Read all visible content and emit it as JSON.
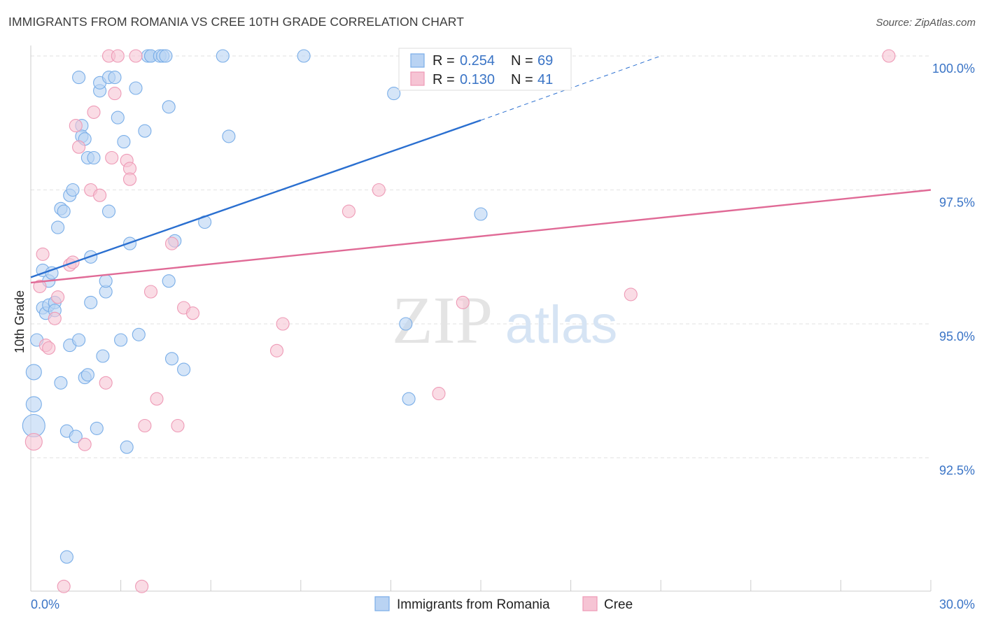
{
  "header": {
    "title": "IMMIGRANTS FROM ROMANIA VS CREE 10TH GRADE CORRELATION CHART",
    "source": "Source: ZipAtlas.com"
  },
  "watermark": {
    "zip": "ZIP",
    "atlas": "atlas"
  },
  "chart_data": {
    "type": "scatter",
    "title": "IMMIGRANTS FROM ROMANIA VS CREE 10TH GRADE CORRELATION CHART",
    "xlabel": "",
    "ylabel": "10th Grade",
    "xlim": [
      0,
      30
    ],
    "ylim": [
      89.8,
      100.2
    ],
    "x_tick_labels": [
      {
        "value": 0,
        "label": "0.0%"
      },
      {
        "value": 30,
        "label": "30.0%"
      }
    ],
    "y_tick_labels": [
      {
        "value": 100,
        "label": "100.0%"
      },
      {
        "value": 97.5,
        "label": "97.5%"
      },
      {
        "value": 95,
        "label": "95.0%"
      },
      {
        "value": 92.5,
        "label": "92.5%"
      }
    ],
    "grid": true,
    "legend": [
      {
        "series": "Immigrants from Romania",
        "r_label": "R =",
        "r": "0.254",
        "n_label": "N =",
        "n": "69"
      },
      {
        "series": "Cree",
        "r_label": "R =",
        "r": "0.130",
        "n_label": "N =",
        "n": "41"
      }
    ],
    "series": [
      {
        "name": "Immigrants from Romania",
        "color": "#7aaee8",
        "fill": "#b9d3f3",
        "trend": {
          "x0": 0.0,
          "y0": 95.87,
          "x1": 15.0,
          "y1": 98.8,
          "dash_x1": 21.0,
          "dash_y1": 100.0
        },
        "points": [
          [
            0.1,
            93.1,
            16
          ],
          [
            0.1,
            93.5,
            11
          ],
          [
            0.1,
            94.1,
            11
          ],
          [
            0.2,
            94.7,
            9
          ],
          [
            0.4,
            96.0,
            9
          ],
          [
            0.4,
            95.3,
            9
          ],
          [
            0.5,
            95.2,
            9
          ],
          [
            0.6,
            95.8,
            9
          ],
          [
            0.6,
            95.35,
            9
          ],
          [
            0.7,
            95.95,
            9
          ],
          [
            0.8,
            95.4,
            9
          ],
          [
            0.8,
            95.25,
            9
          ],
          [
            0.9,
            96.8,
            9
          ],
          [
            1.0,
            97.15,
            9
          ],
          [
            1.1,
            97.1,
            9
          ],
          [
            1.0,
            93.9,
            9
          ],
          [
            1.2,
            93.0,
            9
          ],
          [
            1.2,
            90.65,
            9
          ],
          [
            1.3,
            97.4,
            9
          ],
          [
            1.3,
            94.6,
            9
          ],
          [
            1.4,
            97.5,
            9
          ],
          [
            1.5,
            92.9,
            9
          ],
          [
            1.6,
            94.7,
            9
          ],
          [
            1.6,
            99.6,
            9
          ],
          [
            1.7,
            98.7,
            9
          ],
          [
            1.7,
            98.5,
            9
          ],
          [
            1.8,
            94.0,
            9
          ],
          [
            1.9,
            98.1,
            9
          ],
          [
            1.9,
            94.05,
            9
          ],
          [
            2.0,
            96.25,
            9
          ],
          [
            2.0,
            95.4,
            9
          ],
          [
            2.1,
            98.1,
            9
          ],
          [
            2.2,
            93.05,
            9
          ],
          [
            2.3,
            99.35,
            9
          ],
          [
            2.3,
            99.5,
            9
          ],
          [
            2.4,
            94.4,
            9
          ],
          [
            2.5,
            95.6,
            9
          ],
          [
            2.5,
            95.8,
            9
          ],
          [
            2.6,
            99.6,
            9
          ],
          [
            2.6,
            97.1,
            9
          ],
          [
            2.8,
            99.6,
            9
          ],
          [
            2.9,
            98.85,
            9
          ],
          [
            3.0,
            94.7,
            9
          ],
          [
            3.1,
            98.4,
            9
          ],
          [
            3.2,
            92.7,
            9
          ],
          [
            3.3,
            96.5,
            9
          ],
          [
            3.5,
            99.4,
            9
          ],
          [
            3.6,
            94.8,
            9
          ],
          [
            3.8,
            98.6,
            9
          ],
          [
            3.9,
            100.0,
            9
          ],
          [
            4.0,
            100.0,
            9
          ],
          [
            4.0,
            100.0,
            9
          ],
          [
            4.3,
            100.0,
            9
          ],
          [
            4.4,
            100.0,
            9
          ],
          [
            4.5,
            100.0,
            9
          ],
          [
            4.6,
            95.8,
            9
          ],
          [
            4.6,
            99.05,
            9
          ],
          [
            4.7,
            94.35,
            9
          ],
          [
            4.8,
            96.55,
            9
          ],
          [
            5.1,
            94.15,
            9
          ],
          [
            5.8,
            96.9,
            9
          ],
          [
            6.4,
            100.0,
            9
          ],
          [
            6.6,
            98.5,
            9
          ],
          [
            9.1,
            100.0,
            9
          ],
          [
            12.1,
            99.3,
            9
          ],
          [
            12.5,
            95.0,
            9
          ],
          [
            12.6,
            93.6,
            9
          ],
          [
            15.0,
            97.05,
            9
          ],
          [
            1.8,
            98.45,
            9
          ]
        ]
      },
      {
        "name": "Cree",
        "color": "#ee9ab6",
        "fill": "#f6c4d4",
        "trend": {
          "x0": 0.0,
          "y0": 95.77,
          "x1": 30.0,
          "y1": 97.5
        },
        "points": [
          [
            0.1,
            92.8,
            12
          ],
          [
            0.3,
            95.7,
            9
          ],
          [
            0.4,
            96.3,
            9
          ],
          [
            0.5,
            94.6,
            9
          ],
          [
            0.6,
            94.55,
            9
          ],
          [
            0.8,
            95.1,
            9
          ],
          [
            0.9,
            95.5,
            9
          ],
          [
            1.1,
            90.1,
            9
          ],
          [
            1.3,
            96.1,
            9
          ],
          [
            1.4,
            96.15,
            9
          ],
          [
            1.5,
            98.7,
            9
          ],
          [
            1.6,
            98.3,
            9
          ],
          [
            1.8,
            92.75,
            9
          ],
          [
            2.0,
            97.5,
            9
          ],
          [
            2.1,
            98.95,
            9
          ],
          [
            2.3,
            97.4,
            9
          ],
          [
            2.5,
            93.9,
            9
          ],
          [
            2.6,
            100.0,
            9
          ],
          [
            2.7,
            98.1,
            9
          ],
          [
            2.8,
            99.3,
            9
          ],
          [
            2.9,
            100.0,
            9
          ],
          [
            3.2,
            98.05,
            9
          ],
          [
            3.3,
            97.9,
            9
          ],
          [
            3.3,
            97.7,
            9
          ],
          [
            3.5,
            100.0,
            9
          ],
          [
            3.7,
            90.1,
            9
          ],
          [
            3.8,
            93.1,
            9
          ],
          [
            4.0,
            95.6,
            9
          ],
          [
            4.2,
            93.6,
            9
          ],
          [
            4.7,
            96.5,
            9
          ],
          [
            4.9,
            93.1,
            9
          ],
          [
            5.1,
            95.3,
            9
          ],
          [
            5.4,
            95.2,
            9
          ],
          [
            8.2,
            94.5,
            9
          ],
          [
            8.4,
            95.0,
            9
          ],
          [
            10.6,
            97.1,
            9
          ],
          [
            11.6,
            97.5,
            9
          ],
          [
            14.4,
            95.4,
            9
          ],
          [
            13.6,
            93.7,
            9
          ],
          [
            20.0,
            95.55,
            9
          ],
          [
            28.6,
            100.0,
            9
          ]
        ]
      }
    ]
  }
}
